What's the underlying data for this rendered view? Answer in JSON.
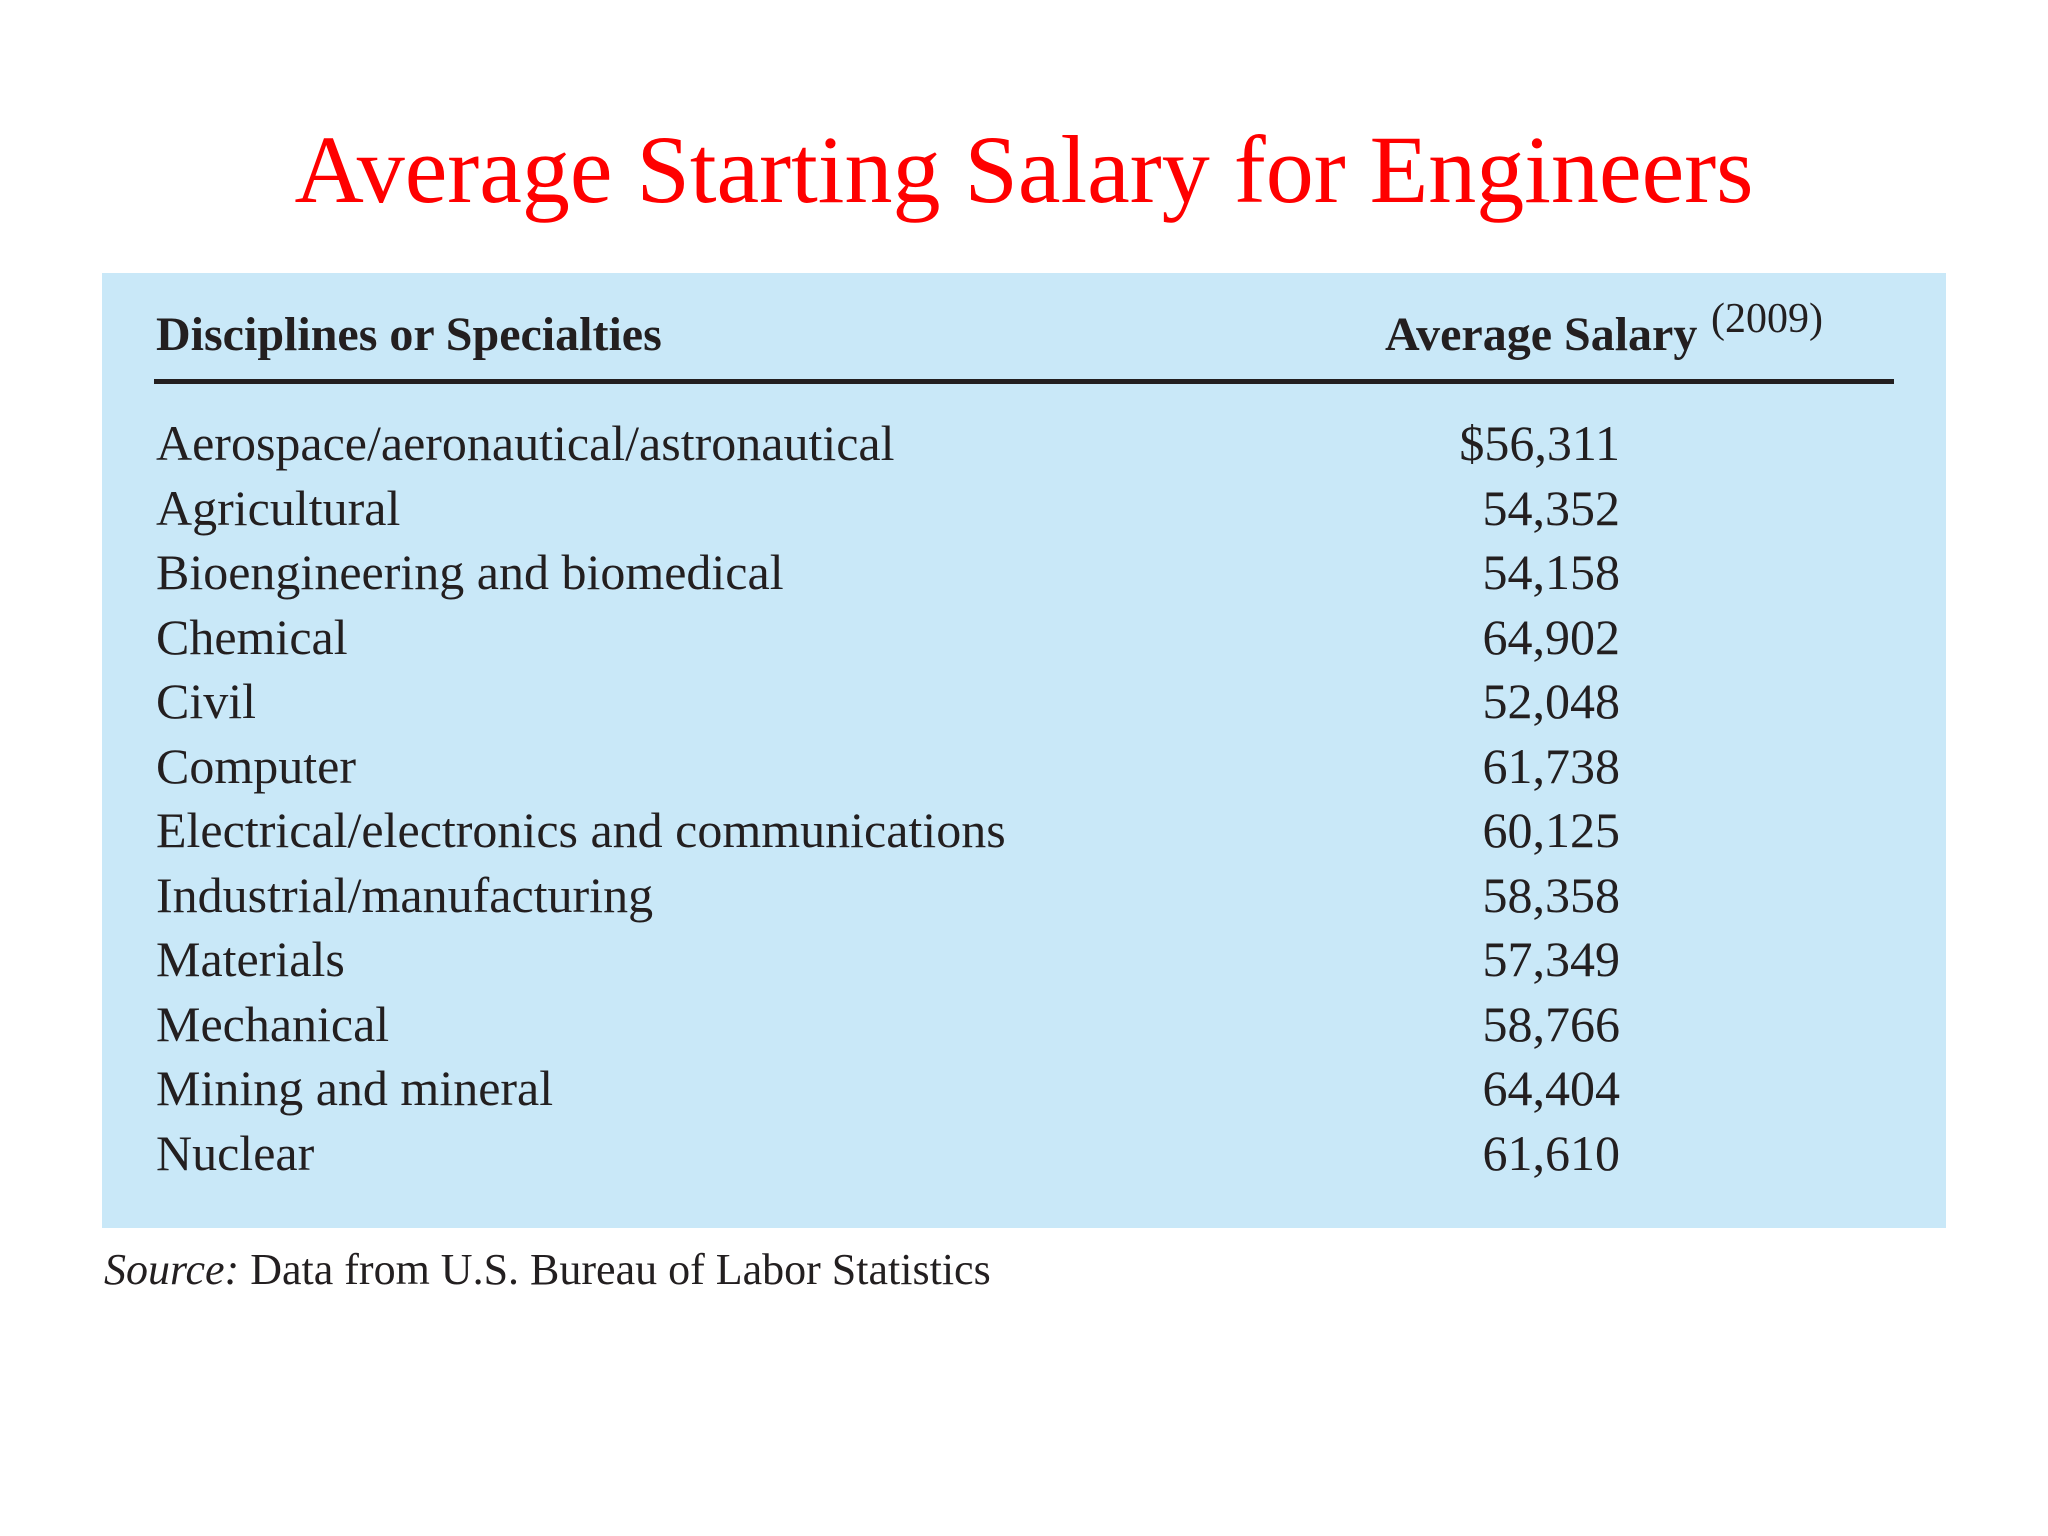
{
  "slide": {
    "title": "Average Starting Salary for Engineers"
  },
  "table": {
    "headers": {
      "discipline": "Disciplines or Specialties",
      "salary": "Average Salary",
      "year": "(2009)"
    },
    "rows": [
      {
        "discipline": "Aerospace/aeronautical/astronautical",
        "salary": "$56,311"
      },
      {
        "discipline": "Agricultural",
        "salary": "54,352"
      },
      {
        "discipline": "Bioengineering and biomedical",
        "salary": "54,158"
      },
      {
        "discipline": "Chemical",
        "salary": "64,902"
      },
      {
        "discipline": "Civil",
        "salary": "52,048"
      },
      {
        "discipline": "Computer",
        "salary": "61,738"
      },
      {
        "discipline": "Electrical/electronics and communications",
        "salary": "60,125"
      },
      {
        "discipline": "Industrial/manufacturing",
        "salary": "58,358"
      },
      {
        "discipline": "Materials",
        "salary": "57,349"
      },
      {
        "discipline": "Mechanical",
        "salary": "58,766"
      },
      {
        "discipline": "Mining and mineral",
        "salary": "64,404"
      },
      {
        "discipline": "Nuclear",
        "salary": "61,610"
      }
    ],
    "panel_color": "#c9e8f8"
  },
  "source": {
    "label": "Source:",
    "text": "Data from U.S. Bureau of Labor Statistics"
  },
  "colors": {
    "title": "#ff0000",
    "text": "#231f20"
  }
}
